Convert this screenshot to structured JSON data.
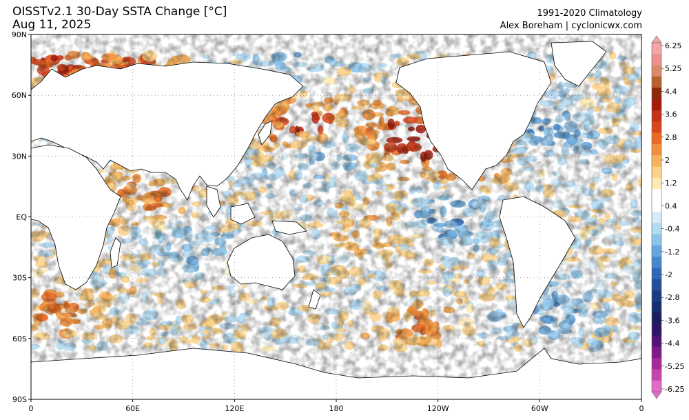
{
  "header": {
    "title": "OISSTv2.1 30-Day SSTA Change [°C]",
    "date": "Aug 11, 2025",
    "climatology": "1991-2020 Climatology",
    "credit": "Alex Boreham | cyclonicwx.com"
  },
  "axes": {
    "lat_labels": [
      "90N",
      "60N",
      "30N",
      "EQ",
      "30S",
      "60S",
      "90S"
    ],
    "lon_labels": [
      "0",
      "60E",
      "120E",
      "180",
      "120W",
      "60W",
      "0"
    ],
    "lat_values": [
      90,
      60,
      30,
      0,
      -30,
      -60,
      -90
    ],
    "lon_values": [
      0,
      60,
      120,
      180,
      240,
      300,
      360
    ]
  },
  "colorbar": {
    "labels": [
      "6.25",
      "5.25",
      "4.4",
      "3.6",
      "2.8",
      "2",
      "1.2",
      "0.4",
      "-0.4",
      "-1.2",
      "-2",
      "-2.8",
      "-3.6",
      "-4.4",
      "-5.25",
      "-6.25"
    ],
    "colors": [
      "#f4a6a6",
      "#ec8f8f",
      "#d88a6a",
      "#b8602f",
      "#8b2a0a",
      "#a51b0b",
      "#c6301a",
      "#d9471d",
      "#ea6b25",
      "#f08f3c",
      "#f6b25c",
      "#fbd28a",
      "#fdeab4",
      "#ffffff",
      "#ffffff",
      "#d6ecf8",
      "#b4dbf2",
      "#8ec4ea",
      "#67a6dc",
      "#4787cb",
      "#2f69b5",
      "#224f9c",
      "#1b3c85",
      "#172d6e",
      "#1a1e5a",
      "#2d1466",
      "#521375",
      "#7c1a86",
      "#a52998",
      "#c744ad",
      "#e06ac7"
    ]
  },
  "map": {
    "ocean_cells": [
      {
        "lat": 75,
        "lon": 15,
        "v": 2.5
      },
      {
        "lat": 75,
        "lon": 60,
        "v": 1.8
      },
      {
        "lat": 76,
        "lon": 150,
        "v": -0.8
      },
      {
        "lat": 45,
        "lon": 160,
        "v": 3.2
      },
      {
        "lat": 35,
        "lon": 170,
        "v": -1.6
      },
      {
        "lat": 45,
        "lon": 220,
        "v": 2.4
      },
      {
        "lat": 35,
        "lon": 230,
        "v": 2.0
      },
      {
        "lat": 40,
        "lon": 310,
        "v": -1.4
      },
      {
        "lat": 25,
        "lon": 260,
        "v": 1.2
      },
      {
        "lat": 0,
        "lon": 250,
        "v": -1.8
      },
      {
        "lat": -5,
        "lon": 200,
        "v": 0.8
      },
      {
        "lat": -45,
        "lon": 20,
        "v": 1.5
      },
      {
        "lat": -45,
        "lon": 310,
        "v": -1.2
      },
      {
        "lat": -55,
        "lon": 230,
        "v": 1.4
      },
      {
        "lat": 10,
        "lon": 65,
        "v": 1.6
      },
      {
        "lat": -15,
        "lon": 90,
        "v": -0.6
      }
    ]
  }
}
